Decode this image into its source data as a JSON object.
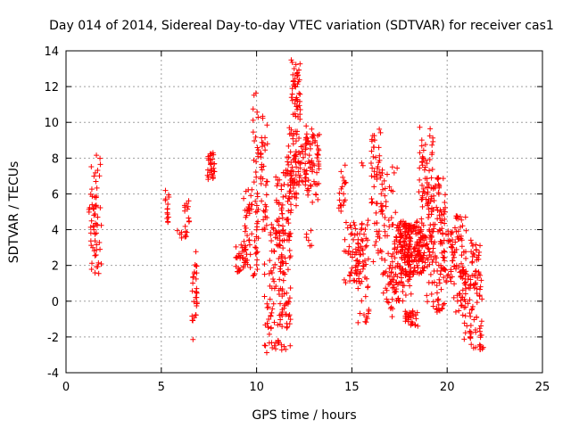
{
  "chart_data": {
    "type": "scatter",
    "title": "Day 014 of 2014, Sidereal Day-to-day VTEC variation (SDTVAR) for receiver cas1",
    "xlabel": "GPS time / hours",
    "ylabel": "SDTVAR / TECUs",
    "xlim": [
      0,
      25
    ],
    "ylim": [
      -4,
      14
    ],
    "xticks": [
      0,
      5,
      10,
      15,
      20,
      25
    ],
    "yticks": [
      -4,
      -2,
      0,
      2,
      4,
      6,
      8,
      10,
      12,
      14
    ],
    "grid": true,
    "marker": "+",
    "color": "#ff0000",
    "series": [
      {
        "name": "SDTVAR",
        "clusters": [
          {
            "x": [
              1.2,
              1.9
            ],
            "y": [
              1.5,
              8.6
            ],
            "n": 60
          },
          {
            "x": [
              5.2,
              5.4
            ],
            "y": [
              4.3,
              6.2
            ],
            "n": 14
          },
          {
            "x": [
              5.8,
              6.3
            ],
            "y": [
              3.5,
              4.0
            ],
            "n": 6
          },
          {
            "x": [
              6.2,
              6.5
            ],
            "y": [
              3.5,
              5.9
            ],
            "n": 14
          },
          {
            "x": [
              6.6,
              6.9
            ],
            "y": [
              -2.4,
              2.8
            ],
            "n": 30
          },
          {
            "x": [
              7.4,
              7.8
            ],
            "y": [
              6.8,
              8.3
            ],
            "n": 30
          },
          {
            "x": [
              8.9,
              9.5
            ],
            "y": [
              1.6,
              3.2
            ],
            "n": 30
          },
          {
            "x": [
              9.3,
              10.1
            ],
            "y": [
              1.4,
              6.3
            ],
            "n": 60
          },
          {
            "x": [
              9.8,
              10.1
            ],
            "y": [
              6.5,
              11.9
            ],
            "n": 18
          },
          {
            "x": [
              10.2,
              10.6
            ],
            "y": [
              4.0,
              10.4
            ],
            "n": 40
          },
          {
            "x": [
              10.4,
              11.8
            ],
            "y": [
              -2.9,
              4.6
            ],
            "n": 140
          },
          {
            "x": [
              11.0,
              11.8
            ],
            "y": [
              2.0,
              7.5
            ],
            "n": 50
          },
          {
            "x": [
              11.6,
              12.1
            ],
            "y": [
              5.0,
              9.8
            ],
            "n": 60
          },
          {
            "x": [
              11.8,
              12.3
            ],
            "y": [
              10.0,
              13.5
            ],
            "n": 45
          },
          {
            "x": [
              12.1,
              12.6
            ],
            "y": [
              6.5,
              9.5
            ],
            "n": 40
          },
          {
            "x": [
              12.6,
              13.3
            ],
            "y": [
              5.3,
              10.0
            ],
            "n": 60
          },
          {
            "x": [
              12.5,
              12.9
            ],
            "y": [
              2.0,
              4.0
            ],
            "n": 6
          },
          {
            "x": [
              14.3,
              14.7
            ],
            "y": [
              5.0,
              7.8
            ],
            "n": 20
          },
          {
            "x": [
              14.6,
              15.6
            ],
            "y": [
              1.0,
              4.5
            ],
            "n": 60
          },
          {
            "x": [
              15.3,
              15.9
            ],
            "y": [
              -1.3,
              4.6
            ],
            "n": 45
          },
          {
            "x": [
              15.4,
              15.6
            ],
            "y": [
              7.5,
              7.8
            ],
            "n": 2
          },
          {
            "x": [
              16.0,
              16.6
            ],
            "y": [
              2.0,
              9.9
            ],
            "n": 60
          },
          {
            "x": [
              16.5,
              17.3
            ],
            "y": [
              -1.0,
              6.5
            ],
            "n": 55
          },
          {
            "x": [
              16.6,
              17.4
            ],
            "y": [
              4.0,
              7.6
            ],
            "n": 12
          },
          {
            "x": [
              17.2,
              18.2
            ],
            "y": [
              0.0,
              4.3
            ],
            "n": 90
          },
          {
            "x": [
              17.5,
              18.8
            ],
            "y": [
              1.5,
              4.5
            ],
            "n": 160
          },
          {
            "x": [
              17.8,
              18.5
            ],
            "y": [
              -1.4,
              -0.5
            ],
            "n": 30
          },
          {
            "x": [
              18.5,
              19.3
            ],
            "y": [
              1.5,
              9.8
            ],
            "n": 70
          },
          {
            "x": [
              18.9,
              19.9
            ],
            "y": [
              -0.7,
              6.9
            ],
            "n": 120
          },
          {
            "x": [
              19.6,
              20.3
            ],
            "y": [
              1.0,
              4.0
            ],
            "n": 40
          },
          {
            "x": [
              20.3,
              21.0
            ],
            "y": [
              -0.8,
              4.8
            ],
            "n": 70
          },
          {
            "x": [
              20.8,
              21.3
            ],
            "y": [
              -2.3,
              2.0
            ],
            "n": 30
          },
          {
            "x": [
              21.2,
              21.8
            ],
            "y": [
              -2.8,
              3.5
            ],
            "n": 60
          },
          {
            "x": [
              21.7,
              21.9
            ],
            "y": [
              -2.8,
              0.8
            ],
            "n": 10
          }
        ]
      }
    ]
  }
}
